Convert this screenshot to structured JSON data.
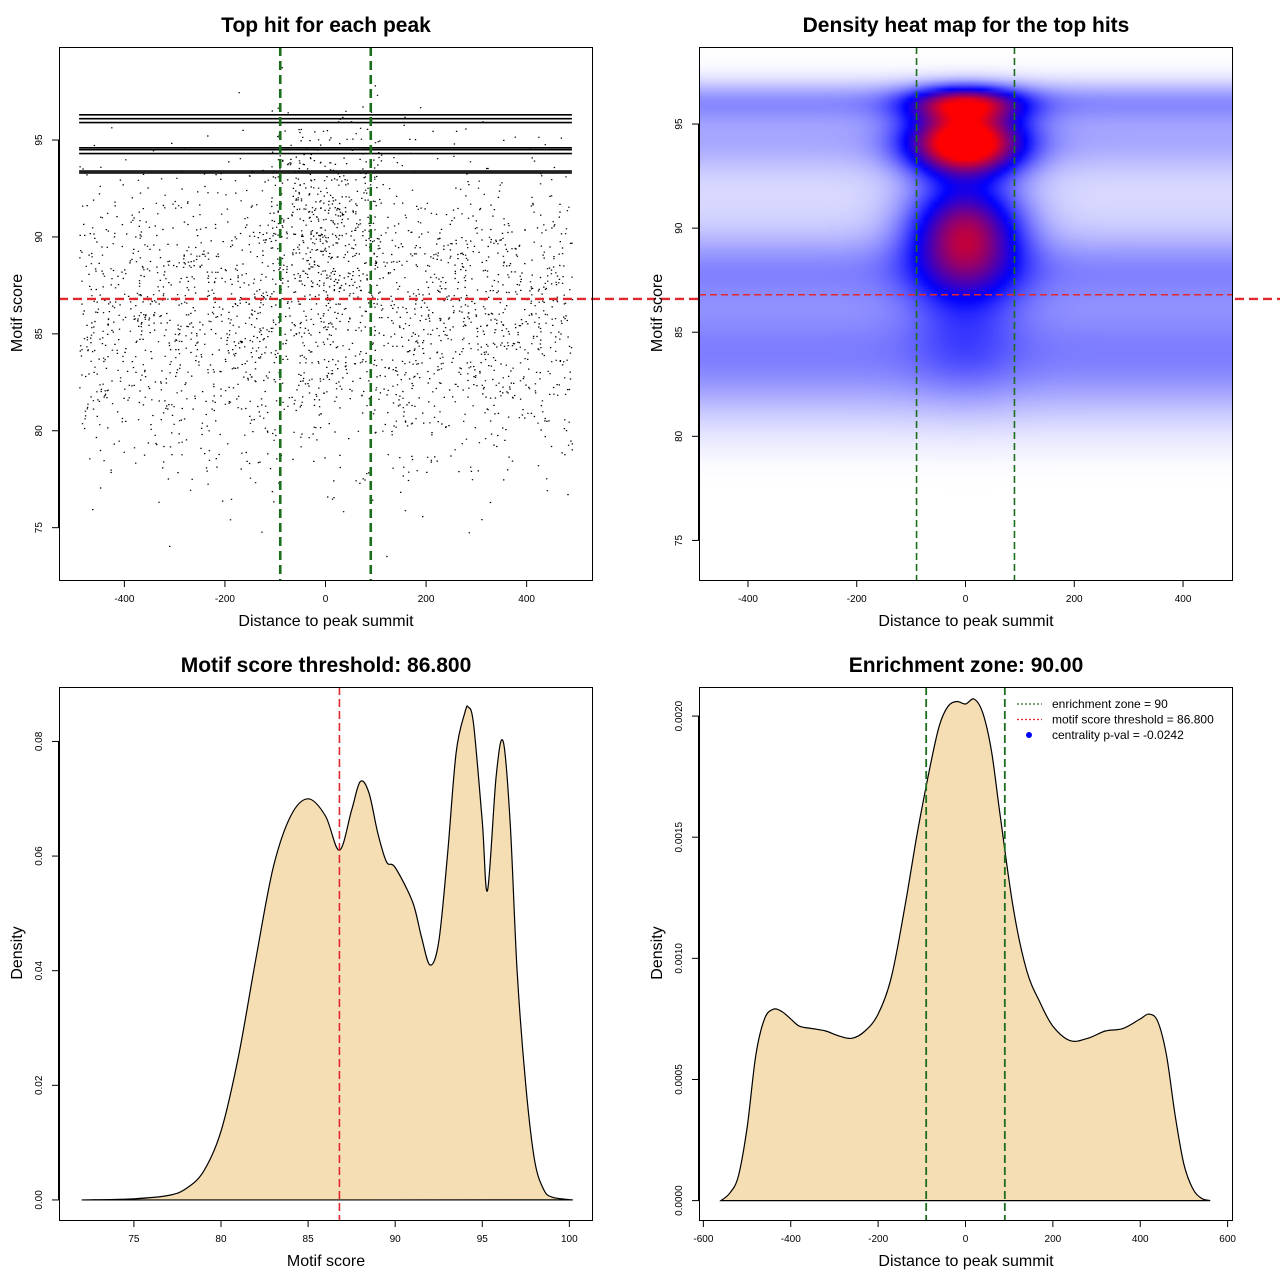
{
  "chart_data": [
    {
      "type": "scatter",
      "title": "Top hit for each peak",
      "xlabel": "Distance to peak summit",
      "ylabel": "Motif score",
      "xlim": [
        -530,
        530
      ],
      "ylim": [
        72.3,
        99.8
      ],
      "x_ticks": [
        -400,
        -200,
        0,
        200,
        400
      ],
      "y_ticks": [
        75,
        80,
        85,
        90,
        95
      ],
      "x_range_points": [
        -490,
        490
      ],
      "dense_score_lines": [
        96.3,
        96.1,
        95.9,
        94.6,
        94.5,
        94.3,
        93.4,
        93.3
      ],
      "density_profile": {
        "x": [
          -490,
          -200,
          -90,
          0,
          90,
          200,
          490
        ],
        "weight": [
          1.0,
          1.1,
          1.6,
          2.4,
          1.6,
          1.1,
          1.0
        ]
      },
      "vlines": [
        -90,
        90
      ],
      "vline_color": "#1b6e1b",
      "hline": 86.8,
      "hline_color": "#e0282e",
      "grid": false
    },
    {
      "type": "heatmap",
      "title": "Density heat map for the top hits",
      "xlabel": "Distance to peak summit",
      "ylabel": "Motif score",
      "xlim": [
        -490,
        490
      ],
      "ylim": [
        73.1,
        98.7
      ],
      "x_ticks": [
        -400,
        -200,
        0,
        200,
        400
      ],
      "y_ticks": [
        75,
        80,
        85,
        90,
        95
      ],
      "colormap": [
        "#ffffff",
        "#0000ff",
        "#ff0000"
      ],
      "hot_spots": [
        {
          "x": 5,
          "y": 94.1,
          "level": "highest"
        },
        {
          "x": 5,
          "y": 96.0,
          "level": "high"
        },
        {
          "x": 5,
          "y": 90.2,
          "level": "high"
        }
      ],
      "vlines": [
        -90,
        90
      ],
      "vline_color": "#1b6e1b",
      "hline": 86.8,
      "hline_color": "#e0282e",
      "grid": false
    },
    {
      "type": "area",
      "title": "Motif score threshold: 86.800",
      "xlabel": "Motif score",
      "ylabel": "Density",
      "xlim": [
        70.7,
        101.3
      ],
      "ylim": [
        -0.0035,
        0.0895
      ],
      "x_ticks": [
        75,
        80,
        85,
        90,
        95,
        100
      ],
      "y_ticks": [
        0.0,
        0.02,
        0.04,
        0.06,
        0.08
      ],
      "y_tick_labels": [
        "0.00",
        "0.02",
        "0.04",
        "0.06",
        "0.08"
      ],
      "x": [
        72,
        75,
        77,
        78,
        79,
        80,
        81,
        82,
        83,
        84,
        85,
        86,
        86.8,
        87.5,
        88,
        88.5,
        89,
        89.5,
        90,
        91,
        91.5,
        92,
        92.5,
        93,
        93.5,
        94,
        94.2,
        94.5,
        95,
        95.3,
        95.8,
        96.2,
        96.6,
        97,
        97.5,
        98,
        98.5,
        99,
        100.2
      ],
      "y": [
        0,
        0.0002,
        0.0008,
        0.002,
        0.005,
        0.012,
        0.025,
        0.042,
        0.058,
        0.067,
        0.07,
        0.067,
        0.061,
        0.068,
        0.073,
        0.071,
        0.064,
        0.059,
        0.058,
        0.052,
        0.046,
        0.041,
        0.045,
        0.06,
        0.078,
        0.085,
        0.086,
        0.083,
        0.066,
        0.054,
        0.074,
        0.08,
        0.066,
        0.04,
        0.02,
        0.007,
        0.002,
        0.0005,
        0
      ],
      "fill_color": "#f5deb3",
      "vline": 86.8,
      "vline_color": "#e0282e",
      "grid": false
    },
    {
      "type": "area",
      "title": "Enrichment zone: 90.00",
      "xlabel": "Distance to peak summit",
      "ylabel": "Density",
      "xlim": [
        -610,
        610
      ],
      "ylim": [
        -8e-05,
        0.00212
      ],
      "x_ticks": [
        -600,
        -400,
        -200,
        0,
        200,
        400,
        600
      ],
      "y_ticks": [
        0,
        0.0005,
        0.001,
        0.0015,
        0.002
      ],
      "y_tick_labels": [
        "0.0000",
        "0.0005",
        "0.0010",
        "0.0015",
        "0.0020"
      ],
      "x": [
        -560,
        -540,
        -520,
        -500,
        -480,
        -460,
        -440,
        -420,
        -400,
        -380,
        -350,
        -320,
        -290,
        -260,
        -230,
        -200,
        -170,
        -140,
        -110,
        -80,
        -60,
        -40,
        -20,
        0,
        20,
        40,
        60,
        80,
        110,
        140,
        170,
        200,
        240,
        280,
        320,
        360,
        400,
        420,
        440,
        460,
        480,
        500,
        520,
        540,
        560
      ],
      "y": [
        0,
        3e-05,
        0.0001,
        0.0003,
        0.0006,
        0.00075,
        0.00079,
        0.00078,
        0.00075,
        0.00072,
        0.00071,
        0.0007,
        0.00068,
        0.00067,
        0.0007,
        0.00077,
        0.00092,
        0.0012,
        0.00152,
        0.0018,
        0.00196,
        0.00204,
        0.00206,
        0.00205,
        0.00207,
        0.00201,
        0.00185,
        0.00158,
        0.0012,
        0.00095,
        0.00082,
        0.00072,
        0.00066,
        0.00067,
        0.0007,
        0.00071,
        0.00075,
        0.00077,
        0.00074,
        0.0006,
        0.00035,
        0.00015,
        5e-05,
        1e-05,
        0
      ],
      "fill_color": "#f5deb3",
      "vlines": [
        -90,
        90
      ],
      "vline_color": "#1b6e1b",
      "legend": {
        "position": "top-right",
        "entries": [
          {
            "label": "enrichment zone = 90",
            "style": "dotted-line",
            "color": "#1b6e1b"
          },
          {
            "label": "motif score threshold = 86.800",
            "style": "dotted-line",
            "color": "#e0282e"
          },
          {
            "label": "centrality p-val = -0.0242",
            "style": "point",
            "color": "#0000ff"
          }
        ]
      },
      "grid": false
    }
  ]
}
